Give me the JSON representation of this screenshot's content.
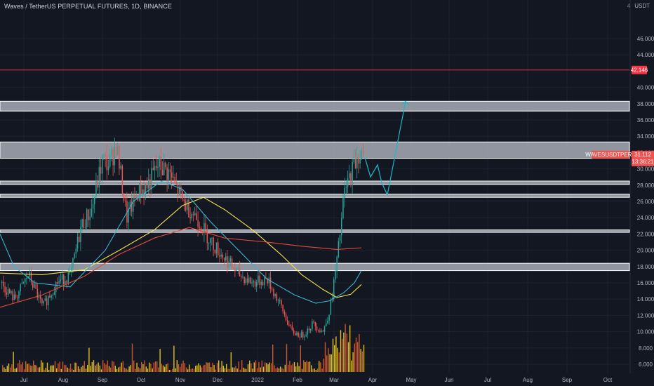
{
  "header": {
    "title": "Waves / TetherUS PERPETUAL FUTURES, 1D, BINANCE",
    "currency": "USDT",
    "corner_mark": "4"
  },
  "chart_data": {
    "type": "candlestick",
    "symbol": "WAVESUSDTPERP",
    "ylim": [
      4.5,
      48
    ],
    "y_ticks": [
      6,
      8,
      10,
      12,
      14,
      16,
      18,
      20,
      22,
      24,
      26,
      28,
      30,
      32,
      34,
      36,
      38,
      40,
      44,
      46
    ],
    "y_tick_labels": [
      "6.000",
      "8.000",
      "10.000",
      "12.000",
      "14.000",
      "16.000",
      "18.000",
      "20.000",
      "22.000",
      "24.000",
      "26.000",
      "28.000",
      "30.000",
      "32.000",
      "34.000",
      "36.000",
      "38.000",
      "40.000",
      "44.000",
      "46.000"
    ],
    "x_months": [
      "Jul",
      "Aug",
      "Sep",
      "Oct",
      "Nov",
      "Dec",
      "2022",
      "Feb",
      "Mar",
      "Apr",
      "May",
      "Jun",
      "Jul",
      "Aug",
      "Sep",
      "Oct"
    ],
    "last_price": "31.112",
    "countdown": "13:36:21",
    "horizontal_line": {
      "value": 42.146,
      "label": "42.146",
      "color": "#f23645"
    },
    "zones": [
      {
        "low": 37.1,
        "high": 38.3
      },
      {
        "low": 31.3,
        "high": 33.3
      },
      {
        "low": 28.1,
        "high": 28.5
      },
      {
        "low": 26.5,
        "high": 26.9
      },
      {
        "low": 22.2,
        "high": 22.5
      },
      {
        "low": 17.5,
        "high": 18.4
      }
    ],
    "ma_lines": [
      {
        "color": "#f7e14b",
        "points": [
          [
            0,
            17.2
          ],
          [
            60,
            17.0
          ],
          [
            120,
            17.6
          ],
          [
            170,
            20.0
          ],
          [
            220,
            22.5
          ],
          [
            260,
            25.5
          ],
          [
            290,
            26.5
          ],
          [
            320,
            25.0
          ],
          [
            360,
            22.5
          ],
          [
            400,
            19.5
          ],
          [
            430,
            17.0
          ],
          [
            460,
            15.2
          ],
          [
            480,
            14.2
          ],
          [
            500,
            14.6
          ],
          [
            515,
            15.8
          ]
        ]
      },
      {
        "color": "#3ab5d0",
        "points": [
          [
            0,
            22.0
          ],
          [
            20,
            18.0
          ],
          [
            50,
            16.0
          ],
          [
            100,
            15.5
          ],
          [
            150,
            20.0
          ],
          [
            190,
            26.0
          ],
          [
            230,
            28.5
          ],
          [
            260,
            27.5
          ],
          [
            300,
            23.5
          ],
          [
            340,
            20.0
          ],
          [
            380,
            16.5
          ],
          [
            420,
            14.5
          ],
          [
            450,
            13.5
          ],
          [
            470,
            13.8
          ],
          [
            490,
            14.8
          ],
          [
            505,
            16.0
          ],
          [
            515,
            17.5
          ]
        ]
      },
      {
        "color": "#e04b3a",
        "points": [
          [
            0,
            13.0
          ],
          [
            60,
            14.5
          ],
          [
            120,
            16.8
          ],
          [
            170,
            19.5
          ],
          [
            220,
            21.5
          ],
          [
            270,
            22.8
          ],
          [
            320,
            21.5
          ],
          [
            380,
            21.0
          ],
          [
            430,
            20.5
          ],
          [
            480,
            20.1
          ],
          [
            515,
            20.3
          ]
        ]
      }
    ],
    "projection": {
      "color": "#1bb8cc",
      "points": [
        [
          520,
          31.4
        ],
        [
          528,
          29.0
        ],
        [
          538,
          30.5
        ],
        [
          544,
          28.3
        ],
        [
          552,
          26.8
        ],
        [
          578,
          38.3
        ]
      ]
    },
    "colors": {
      "up": "#26a69a",
      "down": "#ef5350",
      "volume_up": "#f5d21d",
      "volume_down": "#e05b31"
    }
  }
}
